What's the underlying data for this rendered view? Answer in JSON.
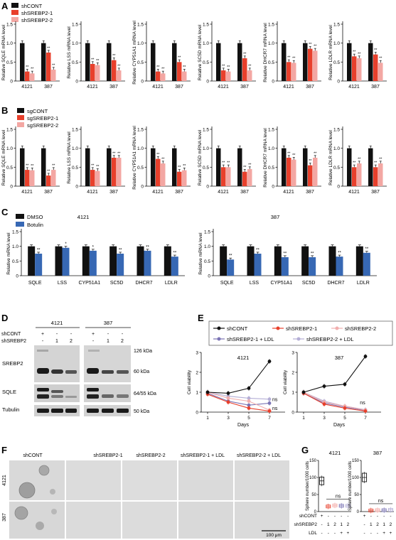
{
  "colors": {
    "black": "#111111",
    "red": "#e8402c",
    "pink": "#f3a7a3",
    "blue": "#3768b4",
    "ldl1": "#7b74b5",
    "ldl2": "#b4aed6",
    "pink_line": "#f1aeae",
    "pink_line2": "#f5c7c7"
  },
  "panel_letters": [
    "A",
    "B",
    "C",
    "D",
    "E",
    "F",
    "G"
  ],
  "panel_A": {
    "legend": [
      "shCONT",
      "shSREBP2-1",
      "shSREBP2-2"
    ],
    "cells": [
      "4121",
      "387"
    ],
    "yticks": [
      "0",
      "0.5",
      "1.0",
      "1.5"
    ],
    "sig_label": "**",
    "charts": [
      {
        "ylabel": "Relative SQLE mRNA level",
        "values": [
          [
            1.0,
            0.25,
            0.2
          ],
          [
            1.0,
            0.75,
            0.3
          ]
        ]
      },
      {
        "ylabel": "Relative LSS mRNA level",
        "values": [
          [
            1.0,
            0.45,
            0.42
          ],
          [
            1.0,
            0.55,
            0.28
          ]
        ]
      },
      {
        "ylabel": "Relative CYP51A1 mRNA level",
        "values": [
          [
            1.0,
            0.25,
            0.2
          ],
          [
            1.0,
            0.5,
            0.25
          ]
        ]
      },
      {
        "ylabel": "Relative SC5D mRNA level",
        "values": [
          [
            1.0,
            0.28,
            0.25
          ],
          [
            1.0,
            0.6,
            0.28
          ]
        ]
      },
      {
        "ylabel": "Relative DHCR7 mRNA level",
        "values": [
          [
            1.0,
            0.5,
            0.48
          ],
          [
            1.0,
            0.85,
            0.8
          ]
        ]
      },
      {
        "ylabel": "Relative LDLR mRNA level",
        "values": [
          [
            1.0,
            0.65,
            0.6
          ],
          [
            1.0,
            0.7,
            0.48
          ]
        ]
      }
    ]
  },
  "panel_B": {
    "legend": [
      "sgCONT",
      "sgSREBP2-1",
      "sgSREBP2-2"
    ],
    "cells": [
      "4121",
      "387"
    ],
    "yticks": [
      "0",
      "0.5",
      "1.0",
      "1.5"
    ],
    "sig_label": "**",
    "charts": [
      {
        "ylabel": "Relative SQLE mRNA level",
        "values": [
          [
            1.0,
            0.43,
            0.42
          ],
          [
            1.0,
            0.28,
            0.43
          ]
        ]
      },
      {
        "ylabel": "Relative LSS mRNA level",
        "values": [
          [
            1.0,
            0.43,
            0.4
          ],
          [
            1.0,
            0.75,
            0.75
          ]
        ]
      },
      {
        "ylabel": "Relative CYP51A1 mRNA level",
        "values": [
          [
            1.0,
            0.72,
            0.6
          ],
          [
            1.0,
            0.38,
            0.42
          ]
        ]
      },
      {
        "ylabel": "Relative SC5D mRNA level",
        "values": [
          [
            1.0,
            0.5,
            0.5
          ],
          [
            1.0,
            0.38,
            0.45
          ]
        ]
      },
      {
        "ylabel": "Relative DHCR7 mRNA level",
        "values": [
          [
            1.0,
            0.75,
            0.7
          ],
          [
            1.0,
            0.55,
            0.75
          ]
        ]
      },
      {
        "ylabel": "Relative LDLR mRNA level",
        "values": [
          [
            1.0,
            0.5,
            0.6
          ],
          [
            1.0,
            0.5,
            0.6
          ]
        ]
      }
    ]
  },
  "panel_C": {
    "legend": [
      "DMSO",
      "Botulin"
    ],
    "ylabel": "Relative mRNA level",
    "yticks": [
      "0",
      "0.5",
      "1.0",
      "1.5"
    ],
    "genes": [
      "SQLE",
      "LSS",
      "CYP51A1",
      "SC5D",
      "DHCR7",
      "LDLR"
    ],
    "charts": [
      {
        "title": "4121",
        "dmso": [
          1.0,
          1.0,
          1.0,
          1.0,
          1.0,
          1.0
        ],
        "treated": [
          0.75,
          0.95,
          0.85,
          0.75,
          0.85,
          0.65
        ],
        "sig": [
          "**",
          "*",
          "*",
          "**",
          "**",
          "**"
        ]
      },
      {
        "title": "387",
        "dmso": [
          1.0,
          1.0,
          1.0,
          1.0,
          1.0,
          1.0
        ],
        "treated": [
          0.55,
          0.75,
          0.63,
          0.63,
          0.65,
          0.78
        ],
        "sig": [
          "**",
          "**",
          "**",
          "**",
          "**",
          "**"
        ]
      }
    ]
  },
  "panel_D": {
    "cells": [
      "4121",
      "387"
    ],
    "row_shcont": "shCONT",
    "row_shsrebp2": "shSREBP2",
    "signs_shcont": [
      "+",
      "-",
      "-",
      "+",
      "-",
      "-"
    ],
    "signs_shsrebp2": [
      "-",
      "1",
      "2",
      "-",
      "1",
      "2"
    ],
    "blot_labels": [
      "SREBP2",
      "SQLE",
      "Tubulin"
    ],
    "size_labels": [
      "126 kDa",
      "60 kDa",
      "64/55 kDa",
      "50 kDa"
    ]
  },
  "panel_E": {
    "legend": [
      "shCONT",
      "shSREBP2-1",
      "shSREBP2-2",
      "shSREBP2-1 + LDL",
      "shSREBP2-2 + LDL"
    ],
    "ylabel": "Cell viability",
    "xlabel": "Days",
    "xticks": [
      "1",
      "3",
      "5",
      "7"
    ],
    "yticks": [
      "0",
      "1",
      "2",
      "3"
    ],
    "ns": "ns",
    "charts": [
      {
        "title": "4121",
        "series": [
          [
            1.0,
            0.95,
            1.2,
            2.55
          ],
          [
            0.9,
            0.5,
            0.2,
            0.05
          ],
          [
            1.0,
            0.7,
            0.55,
            0.1
          ],
          [
            0.95,
            0.55,
            0.35,
            0.45
          ],
          [
            1.0,
            0.8,
            0.7,
            0.65
          ]
        ]
      },
      {
        "title": "387",
        "series": [
          [
            1.0,
            1.3,
            1.4,
            2.8
          ],
          [
            0.95,
            0.4,
            0.2,
            0.05
          ],
          [
            1.0,
            0.5,
            0.3,
            0.1
          ],
          [
            0.95,
            0.45,
            0.25,
            0.08
          ],
          [
            1.0,
            0.55,
            0.3,
            0.12
          ]
        ]
      }
    ]
  },
  "panel_F": {
    "columns": [
      "shCONT",
      "shSREBP2-1",
      "shSREBP2-2",
      "shSREBP2-1 + LDL",
      "shSREBP2-2 + LDL"
    ],
    "rows": [
      "4121",
      "387"
    ],
    "scale": "100 μm"
  },
  "panel_G": {
    "ylabel": "Sphere number/1000 cells",
    "yticks": [
      "0",
      "50",
      "100",
      "150"
    ],
    "ns": "ns",
    "row_labels": [
      "shCONT",
      "shSREBP2",
      "LDL"
    ],
    "signs_shcont": [
      "+",
      "-",
      "-",
      "-",
      "-"
    ],
    "signs_shsrebp2": [
      "-",
      "1",
      "2",
      "1",
      "2"
    ],
    "signs_ldl": [
      "-",
      "-",
      "-",
      "+",
      "+"
    ],
    "charts": [
      {
        "title": "4121",
        "values": [
          90,
          15,
          18,
          17,
          17
        ]
      },
      {
        "title": "387",
        "values": [
          100,
          3,
          4,
          4,
          5
        ]
      }
    ]
  }
}
